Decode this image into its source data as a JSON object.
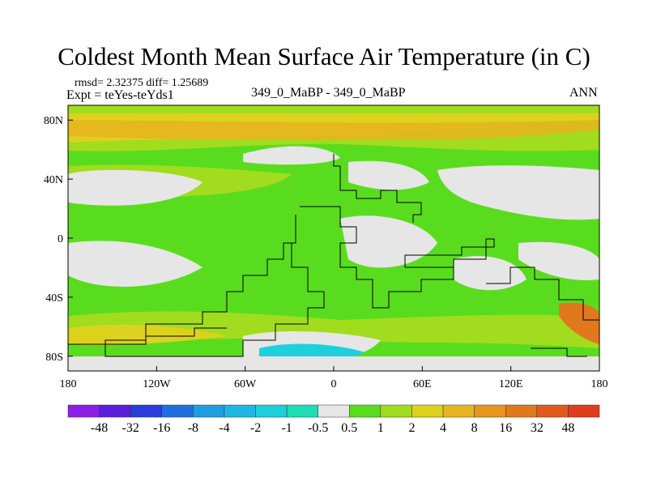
{
  "title": "Coldest Month Mean Surface Air Temperature (in C)",
  "stats": "rmsd= 2.32375 diff= 1.25689",
  "experiment": "Expt = teYes-teYds1",
  "subtitle": "349_0_MaBP - 349_0_MaBP",
  "period": "ANN",
  "chart_data": {
    "type": "heatmap",
    "projection": "cylindrical equidistant",
    "x_ticks": [
      "180",
      "120W",
      "60W",
      "0",
      "60E",
      "120E",
      "180"
    ],
    "y_ticks": [
      "80N",
      "40N",
      "0",
      "40S",
      "80S"
    ],
    "xlim": [
      -180,
      180
    ],
    "ylim": [
      -90,
      90
    ],
    "colorbar": {
      "labels": [
        "-48",
        "-32",
        "-16",
        "-8",
        "-4",
        "-2",
        "-1",
        "-0.5",
        "0.5",
        "1",
        "2",
        "4",
        "8",
        "16",
        "32",
        "48"
      ],
      "colors": [
        "#8c1ee6",
        "#5a1edc",
        "#2a3cdc",
        "#1e6ee0",
        "#1e9ee0",
        "#1eb6e2",
        "#1ed0dc",
        "#1edcb4",
        "#e6e6e6",
        "#5adc1e",
        "#a2dc1e",
        "#dcd21e",
        "#e6b41e",
        "#e6961e",
        "#e0781e",
        "#e05a1e",
        "#e03c1e"
      ]
    }
  }
}
